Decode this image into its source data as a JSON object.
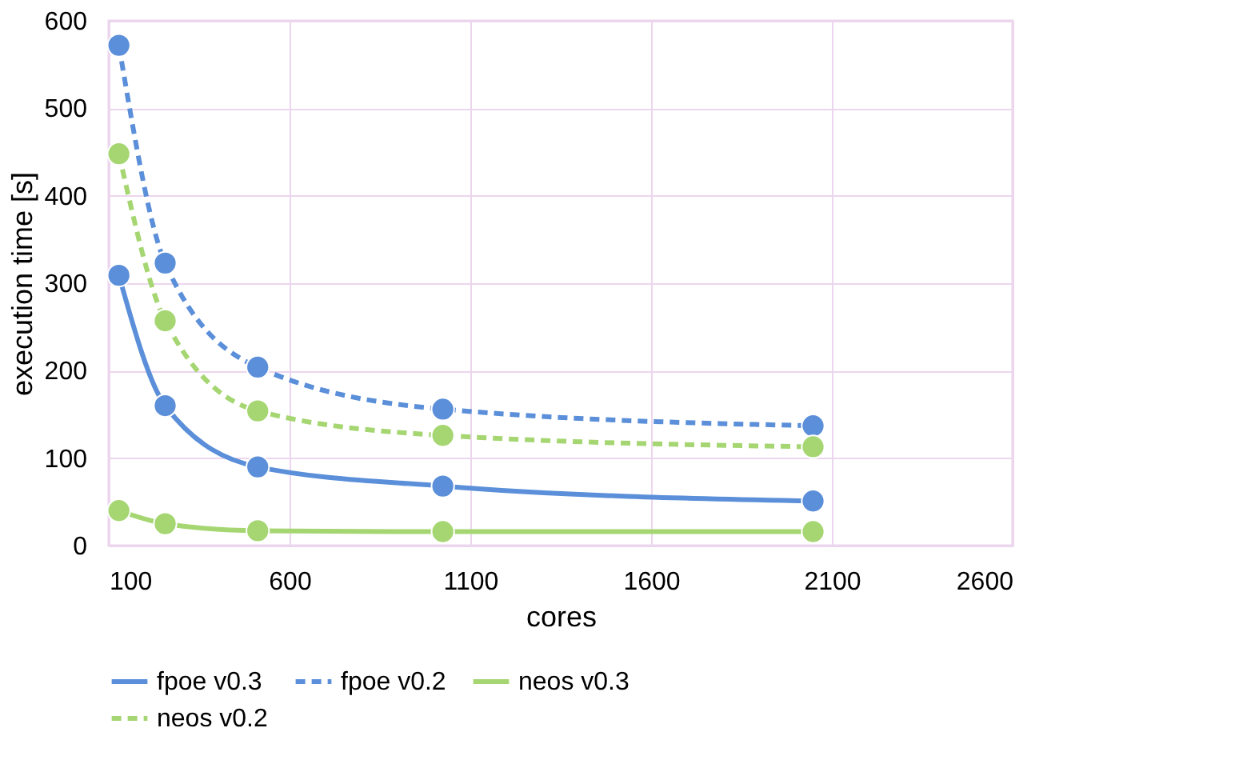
{
  "chart_data": {
    "type": "line",
    "xlabel": "cores",
    "ylabel": "execution time [s]",
    "x": [
      128,
      256,
      512,
      1024,
      2048
    ],
    "series": [
      {
        "name": "fpoe v0.3",
        "color": "#5b8fd9",
        "line_style": "solid",
        "values": [
          309,
          160,
          90,
          68,
          51
        ]
      },
      {
        "name": "fpoe v0.2",
        "color": "#5b8fd9",
        "line_style": "dashed",
        "values": [
          572,
          323,
          204,
          156,
          137
        ]
      },
      {
        "name": "neos v0.3",
        "color": "#a5d672",
        "line_style": "solid",
        "values": [
          40,
          25,
          17,
          16,
          16
        ]
      },
      {
        "name": "neos v0.2",
        "color": "#a5d672",
        "line_style": "dashed",
        "values": [
          448,
          257,
          154,
          126,
          113
        ]
      }
    ],
    "xlim": [
      100,
      2600
    ],
    "xticks": [
      100,
      600,
      1100,
      1600,
      2100,
      2600
    ],
    "ylim": [
      0,
      600
    ],
    "yticks": [
      0,
      100,
      200,
      300,
      400,
      500,
      600
    ],
    "grid": true,
    "legend": "bottom",
    "marker": "circle"
  }
}
